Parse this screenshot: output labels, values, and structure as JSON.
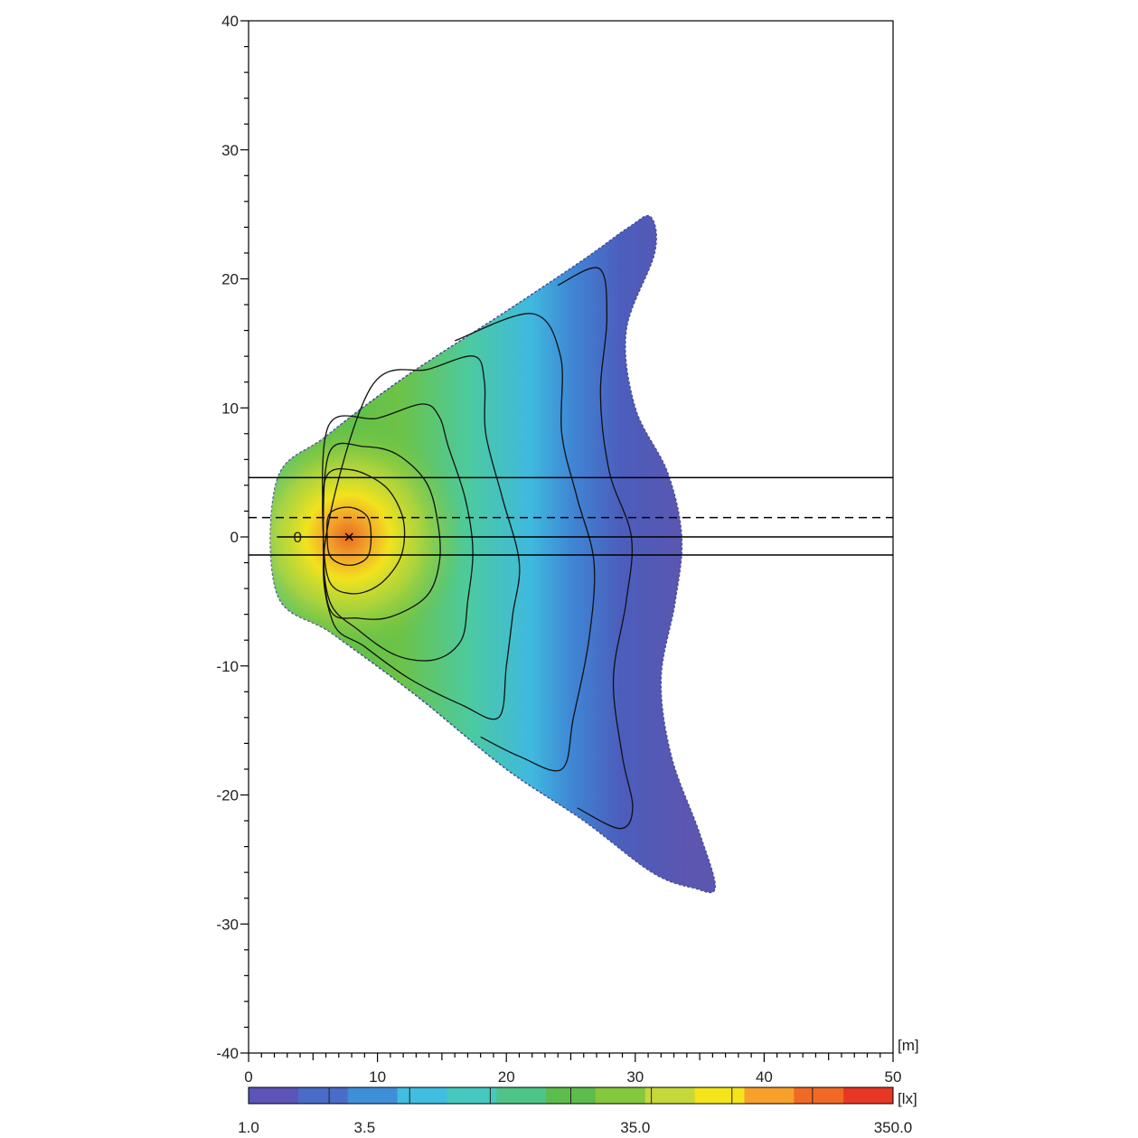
{
  "chart_data": {
    "type": "heatmap",
    "title": "",
    "x_unit": "[m]",
    "colorbar_unit": "[lx]",
    "xlim": [
      0,
      50
    ],
    "ylim": [
      -40,
      40
    ],
    "x_ticks": [
      0,
      10,
      20,
      30,
      40,
      50
    ],
    "y_ticks": [
      40,
      30,
      20,
      10,
      0,
      -10,
      -20,
      -30,
      -40
    ],
    "x_tick_labels": [
      "0",
      "10",
      "20",
      "30",
      "40",
      "50"
    ],
    "y_tick_labels": [
      "40",
      "30",
      "20",
      "10",
      "0",
      "-10",
      "-20",
      "-30",
      "-40"
    ],
    "grid": false,
    "colorbar": {
      "labels": [
        "1.0",
        "3.5",
        "35.0",
        "350.0"
      ],
      "label_positions": [
        0,
        1.8,
        6,
        10
      ],
      "colors": [
        "#5a55b6",
        "#4a6cc8",
        "#3f8fd8",
        "#40bde0",
        "#45c9c0",
        "#4fc488",
        "#5cbd4c",
        "#84c83c",
        "#c6d83a",
        "#f3e51a",
        "#f7a12a",
        "#f06a25",
        "#e83624"
      ]
    },
    "light_source": {
      "x": 7.8,
      "y": 0,
      "label": "0",
      "label_x": 3.8
    },
    "reference_lines": [
      {
        "y": 4.6,
        "style": "solid"
      },
      {
        "y": 1.5,
        "style": "dashed"
      },
      {
        "y": 0,
        "style": "solid",
        "x_start": 2.2
      },
      {
        "y": -1.4,
        "style": "solid"
      }
    ],
    "outline": [
      [
        2.2,
        4.4
      ],
      [
        6,
        7.8
      ],
      [
        12,
        12.3
      ],
      [
        20,
        17.5
      ],
      [
        26,
        21.5
      ],
      [
        29.5,
        24
      ],
      [
        31.2,
        24.8
      ],
      [
        31.5,
        22
      ],
      [
        29.3,
        16
      ],
      [
        30,
        10
      ],
      [
        32.5,
        5
      ],
      [
        33.6,
        0
      ],
      [
        33.1,
        -5
      ],
      [
        32,
        -11
      ],
      [
        32.8,
        -17
      ],
      [
        35,
        -23
      ],
      [
        36.2,
        -27.2
      ],
      [
        34.5,
        -27.2
      ],
      [
        31.3,
        -26
      ],
      [
        26,
        -22
      ],
      [
        20,
        -18
      ],
      [
        13,
        -12.3
      ],
      [
        6.5,
        -7.5
      ],
      [
        2.2,
        -4.4
      ]
    ],
    "contours": [
      [
        [
          6.3,
          1.8
        ],
        [
          7.8,
          2.3
        ],
        [
          9.2,
          1.6
        ],
        [
          9.5,
          0
        ],
        [
          9.2,
          -1.6
        ],
        [
          7.8,
          -2.2
        ],
        [
          6.4,
          -1.6
        ],
        [
          6.1,
          0
        ]
      ],
      [
        [
          6,
          4.6
        ],
        [
          8,
          5.2
        ],
        [
          10.5,
          4
        ],
        [
          11.8,
          2
        ],
        [
          12.1,
          0
        ],
        [
          11.6,
          -2
        ],
        [
          10,
          -3.8
        ],
        [
          8,
          -4.4
        ],
        [
          6.3,
          -3.5
        ],
        [
          5.8,
          0
        ]
      ],
      [
        [
          6.3,
          6.6
        ],
        [
          9,
          7
        ],
        [
          11.5,
          6.4
        ],
        [
          13.8,
          4.2
        ],
        [
          14.7,
          1
        ],
        [
          14.8,
          -2
        ],
        [
          13.8,
          -4.6
        ],
        [
          11,
          -6.2
        ],
        [
          8.5,
          -6.3
        ],
        [
          6.3,
          -5.6
        ],
        [
          5.8,
          0
        ]
      ],
      [
        [
          6.2,
          8.6
        ],
        [
          10,
          9.2
        ],
        [
          13.5,
          10.3
        ],
        [
          14.8,
          9.3
        ],
        [
          15.5,
          7
        ],
        [
          16.8,
          3
        ],
        [
          17.4,
          -1
        ],
        [
          17,
          -5
        ],
        [
          16.5,
          -8
        ],
        [
          14.5,
          -9.5
        ],
        [
          11.5,
          -9.2
        ],
        [
          8.5,
          -7.2
        ],
        [
          6.3,
          -5
        ],
        [
          5.8,
          0
        ]
      ],
      [
        [
          9.5,
          11.6
        ],
        [
          14,
          13
        ],
        [
          17.5,
          14
        ],
        [
          18.3,
          12
        ],
        [
          18.4,
          8
        ],
        [
          19.7,
          3
        ],
        [
          21,
          -2
        ],
        [
          20.5,
          -6
        ],
        [
          20,
          -10
        ],
        [
          19.4,
          -14
        ],
        [
          16.5,
          -13
        ],
        [
          12.5,
          -11
        ],
        [
          9,
          -8.5
        ],
        [
          6.5,
          -6.5
        ],
        [
          6,
          0
        ]
      ],
      [
        [
          16,
          15.2
        ],
        [
          22,
          17.3
        ],
        [
          24.2,
          14
        ],
        [
          24.3,
          8
        ],
        [
          25.5,
          3
        ],
        [
          26.8,
          -2
        ],
        [
          26.4,
          -8
        ],
        [
          25.2,
          -14
        ],
        [
          24.3,
          -18
        ],
        [
          21,
          -17
        ],
        [
          18,
          -15.5
        ]
      ],
      [
        [
          24,
          19.5
        ],
        [
          27.2,
          20.8
        ],
        [
          27.8,
          17
        ],
        [
          27.3,
          11
        ],
        [
          28,
          5
        ],
        [
          29.7,
          0
        ],
        [
          29.3,
          -5
        ],
        [
          28.3,
          -11
        ],
        [
          29,
          -17
        ],
        [
          29.8,
          -21
        ],
        [
          28.8,
          -22.6
        ],
        [
          25.5,
          -21
        ]
      ]
    ]
  }
}
